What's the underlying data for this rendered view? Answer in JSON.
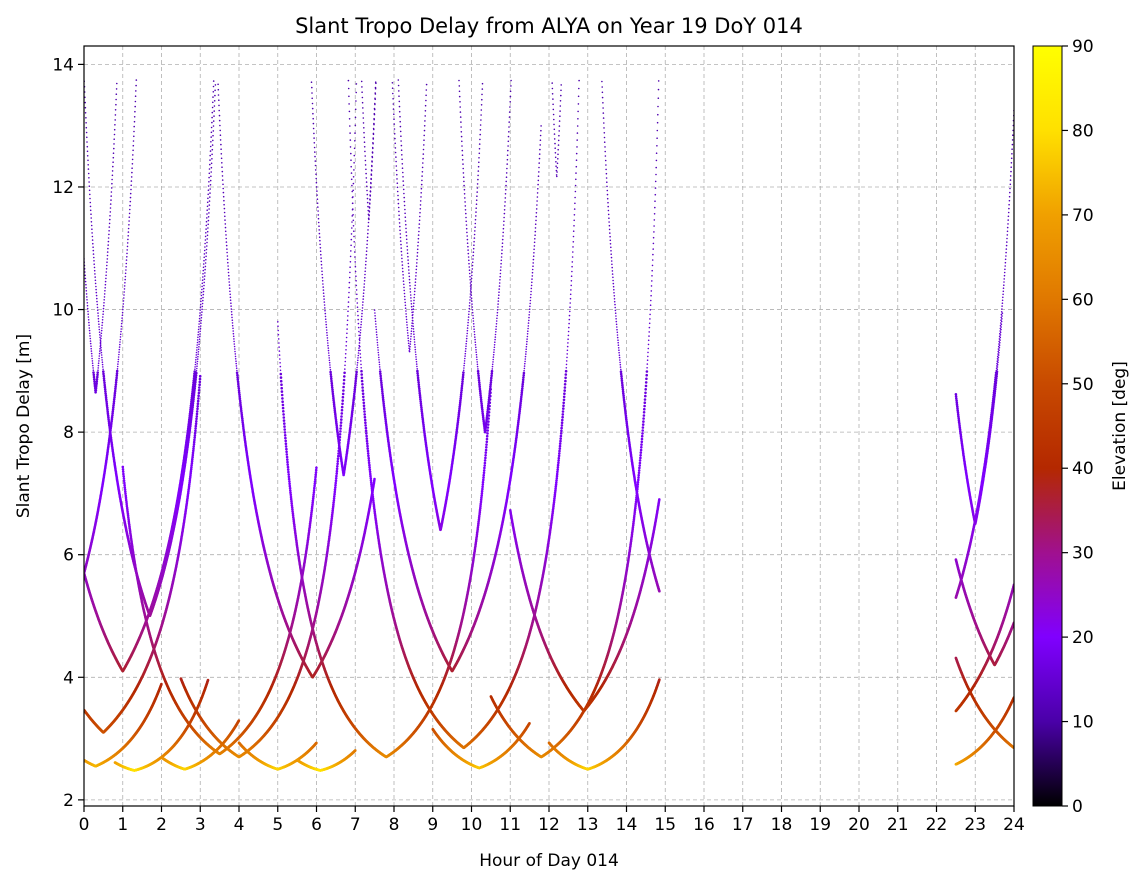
{
  "chart_data": {
    "type": "scatter",
    "title": "Slant Tropo Delay from ALYA on Year 19 DoY 014",
    "xlabel": "Hour of Day 014",
    "ylabel": "Slant Tropo Delay [m]",
    "xlim": [
      0,
      24
    ],
    "ylim": [
      1.9,
      14.3
    ],
    "x_ticks": [
      "0",
      "1",
      "2",
      "3",
      "4",
      "5",
      "6",
      "7",
      "8",
      "9",
      "10",
      "11",
      "12",
      "13",
      "14",
      "15",
      "16",
      "17",
      "18",
      "19",
      "20",
      "21",
      "22",
      "23",
      "24"
    ],
    "y_ticks": [
      "2",
      "4",
      "6",
      "8",
      "10",
      "12",
      "14"
    ],
    "grid": true,
    "colorbar": {
      "label": "Elevation [deg]",
      "range": [
        0,
        90
      ],
      "ticks": [
        "0",
        "10",
        "20",
        "30",
        "40",
        "50",
        "60",
        "70",
        "80",
        "90"
      ],
      "colormap": "gnuplot",
      "colors": [
        "#000000",
        "#4a00a8",
        "#8000ff",
        "#a0108f",
        "#b42800",
        "#c84a00",
        "#e07800",
        "#f0a000",
        "#ffe000",
        "#ffff00"
      ]
    },
    "tracks": [
      {
        "t_start": 0.0,
        "t_end": 1.0,
        "t_min": 0.3,
        "min_delay": 8.65
      },
      {
        "t_start": 6.8,
        "t_end": 7.95,
        "t_min": 7.35,
        "min_delay": 11.45
      },
      {
        "t_start": 11.8,
        "t_end": 12.65,
        "t_min": 12.2,
        "min_delay": 12.15
      },
      {
        "t_start": 7.85,
        "t_end": 9.1,
        "t_min": 8.4,
        "min_delay": 9.3
      },
      {
        "t_start": 9.3,
        "t_end": 11.2,
        "t_min": 10.35,
        "min_delay": 8.0
      },
      {
        "t_start": 4.9,
        "t_end": 7.8,
        "t_min": 6.7,
        "min_delay": 7.3
      },
      {
        "t_start": 7.8,
        "t_end": 11.0,
        "t_min": 9.2,
        "min_delay": 6.4
      },
      {
        "t_start": 0.0,
        "t_end": 1.6,
        "t_min": 0.0,
        "min_delay": 5.7
      },
      {
        "t_start": 0.0,
        "t_end": 3.5,
        "t_min": 1.7,
        "min_delay": 5.0
      },
      {
        "t_start": 2.8,
        "t_end": 7.5,
        "t_min": 5.9,
        "min_delay": 4.0
      },
      {
        "t_start": 7.5,
        "t_end": 11.8,
        "t_min": 9.5,
        "min_delay": 4.1
      },
      {
        "t_start": 0.0,
        "t_end": 4.0,
        "t_min": 1.0,
        "min_delay": 4.1
      },
      {
        "t_start": 11.2,
        "t_end": 14.85,
        "t_min": 14.85,
        "min_delay": 5.4
      },
      {
        "t_start": 0.0,
        "t_end": 3.0,
        "t_min": 0.5,
        "min_delay": 3.1
      },
      {
        "t_start": 1.0,
        "t_end": 6.0,
        "t_min": 3.5,
        "min_delay": 2.75
      },
      {
        "t_start": 2.5,
        "t_end": 7.5,
        "t_min": 4.0,
        "min_delay": 2.7
      },
      {
        "t_start": 5.0,
        "t_end": 10.5,
        "t_min": 7.8,
        "min_delay": 2.7
      },
      {
        "t_start": 6.5,
        "t_end": 13.0,
        "t_min": 9.8,
        "min_delay": 2.85
      },
      {
        "t_start": 11.0,
        "t_end": 14.85,
        "t_min": 12.9,
        "min_delay": 3.45
      },
      {
        "t_start": 10.5,
        "t_end": 14.85,
        "t_min": 11.8,
        "min_delay": 2.7
      },
      {
        "t_start": 0.0,
        "t_end": 2.0,
        "t_min": 0.3,
        "min_delay": 2.55
      },
      {
        "t_start": 0.8,
        "t_end": 3.2,
        "t_min": 1.3,
        "min_delay": 2.48
      },
      {
        "t_start": 2.0,
        "t_end": 4.0,
        "t_min": 2.6,
        "min_delay": 2.5
      },
      {
        "t_start": 4.0,
        "t_end": 6.0,
        "t_min": 5.0,
        "min_delay": 2.5
      },
      {
        "t_start": 5.5,
        "t_end": 7.0,
        "t_min": 6.1,
        "min_delay": 2.48
      },
      {
        "t_start": 9.0,
        "t_end": 11.5,
        "t_min": 10.2,
        "min_delay": 2.52
      },
      {
        "t_start": 12.0,
        "t_end": 14.85,
        "t_min": 13.0,
        "min_delay": 2.5
      },
      {
        "t_start": 22.5,
        "t_end": 23.7,
        "t_min": 23.0,
        "min_delay": 6.5
      },
      {
        "t_start": 22.5,
        "t_end": 24.0,
        "t_min": 22.5,
        "min_delay": 5.3
      },
      {
        "t_start": 22.5,
        "t_end": 24.0,
        "t_min": 23.5,
        "min_delay": 4.2
      },
      {
        "t_start": 22.5,
        "t_end": 24.0,
        "t_min": 22.5,
        "min_delay": 3.45
      },
      {
        "t_start": 22.5,
        "t_end": 24.0,
        "t_min": 24.0,
        "min_delay": 2.85
      },
      {
        "t_start": 22.5,
        "t_end": 24.0,
        "t_min": 22.5,
        "min_delay": 2.58
      }
    ]
  }
}
